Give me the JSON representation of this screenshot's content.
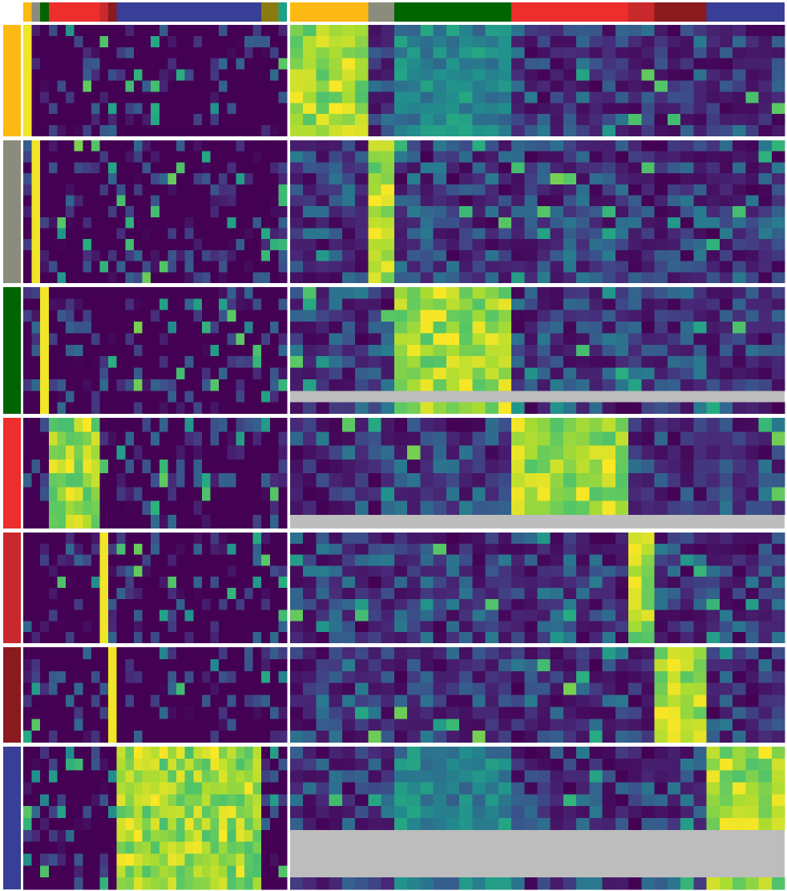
{
  "chart_data": {
    "type": "heatmap",
    "title": "",
    "xlabel": "",
    "ylabel": "",
    "legend": "none",
    "colorscale": "viridis",
    "value_range": [
      0,
      1
    ],
    "missing_color": "#bdbdbd",
    "group_colors": [
      "#FDB913",
      "#8C8C7E",
      "#006400",
      "#EE2D2D",
      "#C9282D",
      "#8B1A1E",
      "#393E96"
    ],
    "row_groups": [
      {
        "rows": 10,
        "missing_rows": 0
      },
      {
        "rows": 13,
        "missing_rows": 0
      },
      {
        "rows": 11,
        "missing_rows": 1
      },
      {
        "rows": 8,
        "missing_rows": 1
      },
      {
        "rows": 10,
        "missing_rows": 0
      },
      {
        "rows": 8,
        "missing_rows": 0
      },
      {
        "rows": 12,
        "missing_rows": 4
      }
    ],
    "left_panel": {
      "column_blocks": [
        1,
        1,
        1,
        6,
        1,
        1,
        17,
        2,
        1
      ]
    },
    "right_panel": {
      "column_blocks": [
        6,
        2,
        9,
        9,
        2,
        4,
        6
      ]
    }
  }
}
